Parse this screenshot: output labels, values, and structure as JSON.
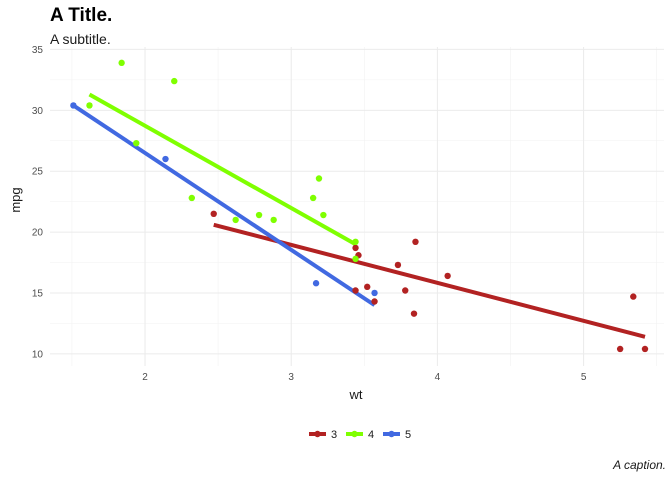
{
  "chart_data": {
    "type": "scatter",
    "title": "A Title.",
    "subtitle": "A subtitle.",
    "caption": "A caption.",
    "xlabel": "wt",
    "ylabel": "mpg",
    "xlim": [
      1.35,
      5.55
    ],
    "ylim": [
      9.0,
      35.2
    ],
    "xticks": [
      2,
      3,
      4,
      5
    ],
    "yticks": [
      10,
      15,
      20,
      25,
      30,
      35
    ],
    "grid": true,
    "legend_position": "bottom",
    "series": [
      {
        "name": "3",
        "color": "#B22222",
        "points": [
          [
            2.47,
            21.5
          ],
          [
            3.44,
            18.7
          ],
          [
            3.46,
            18.1
          ],
          [
            3.44,
            15.2
          ],
          [
            3.52,
            15.5
          ],
          [
            3.57,
            14.3
          ],
          [
            3.73,
            17.3
          ],
          [
            3.78,
            15.2
          ],
          [
            3.84,
            13.3
          ],
          [
            3.85,
            19.2
          ],
          [
            4.07,
            16.4
          ],
          [
            5.25,
            10.4
          ],
          [
            5.34,
            14.7
          ],
          [
            5.42,
            10.4
          ]
        ],
        "fit": [
          [
            2.47,
            20.6
          ],
          [
            5.42,
            11.4
          ]
        ]
      },
      {
        "name": "4",
        "color": "#7FFF00",
        "points": [
          [
            1.62,
            30.4
          ],
          [
            1.84,
            33.9
          ],
          [
            1.94,
            27.3
          ],
          [
            2.2,
            32.4
          ],
          [
            2.32,
            22.8
          ],
          [
            2.62,
            21.0
          ],
          [
            2.78,
            21.4
          ],
          [
            2.88,
            21.0
          ],
          [
            3.15,
            22.8
          ],
          [
            3.19,
            24.4
          ],
          [
            3.22,
            21.4
          ],
          [
            3.44,
            19.2
          ],
          [
            3.44,
            17.8
          ]
        ],
        "fit": [
          [
            1.62,
            31.3
          ],
          [
            3.44,
            19.0
          ]
        ]
      },
      {
        "name": "5",
        "color": "#4169E1",
        "points": [
          [
            1.51,
            30.4
          ],
          [
            2.14,
            26.0
          ],
          [
            3.17,
            15.8
          ],
          [
            3.57,
            15.0
          ]
        ],
        "fit": [
          [
            1.51,
            30.4
          ],
          [
            3.57,
            14.0
          ]
        ]
      }
    ]
  }
}
